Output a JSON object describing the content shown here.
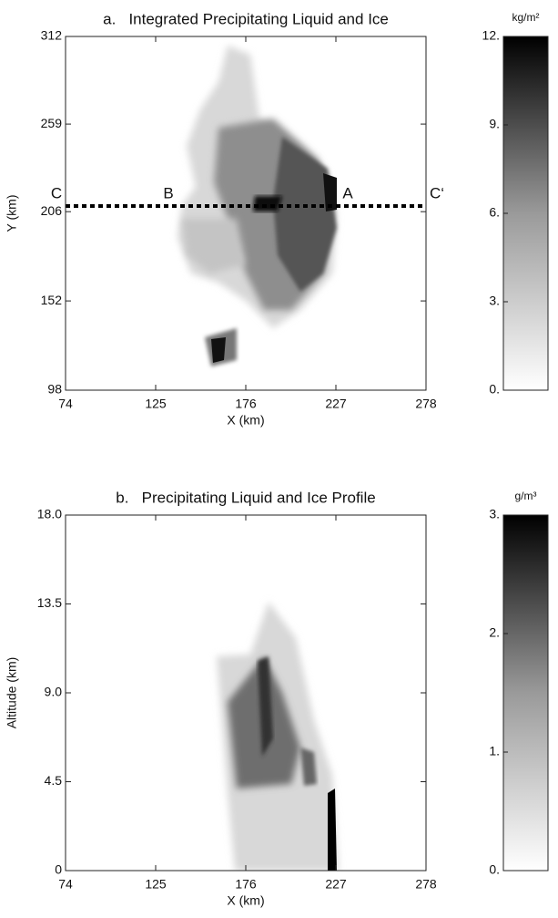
{
  "chart_data": [
    {
      "type": "heatmap",
      "title": "a.   Integrated Precipitating Liquid and Ice",
      "xlabel": "X (km)",
      "ylabel": "Y (km)",
      "xlim": [
        74,
        278
      ],
      "xticks": [
        74,
        125,
        176,
        227,
        278
      ],
      "ylim": [
        98,
        312
      ],
      "yticks": [
        98,
        152,
        206,
        259,
        312
      ],
      "colorbar": {
        "label": "kg/m²",
        "lim": [
          0,
          12
        ],
        "ticks": [
          {
            "value": 0,
            "label": "0."
          },
          {
            "value": 3,
            "label": "3."
          },
          {
            "value": 6,
            "label": "6."
          },
          {
            "value": 9,
            "label": "9."
          },
          {
            "value": 12,
            "label": "12."
          }
        ]
      },
      "annotations": [
        "C",
        "B",
        "A",
        "C‘"
      ]
    },
    {
      "type": "heatmap",
      "title": "b.   Precipitating Liquid and Ice Profile",
      "xlabel": "X (km)",
      "ylabel": "Altitude (km)",
      "xlim": [
        74,
        278
      ],
      "xticks": [
        74,
        125,
        176,
        227,
        278
      ],
      "ylim": [
        0,
        18
      ],
      "yticks": [
        0,
        4.5,
        {
          "value": 9,
          "label": "9.0"
        },
        13.5,
        {
          "value": 18,
          "label": "18.0"
        }
      ],
      "colorbar": {
        "label": "g/m³",
        "lim": [
          0,
          3
        ],
        "ticks": [
          {
            "value": 0,
            "label": "0."
          },
          {
            "value": 1,
            "label": "1."
          },
          {
            "value": 2,
            "label": "2."
          },
          {
            "value": 3,
            "label": "3."
          }
        ]
      }
    }
  ]
}
